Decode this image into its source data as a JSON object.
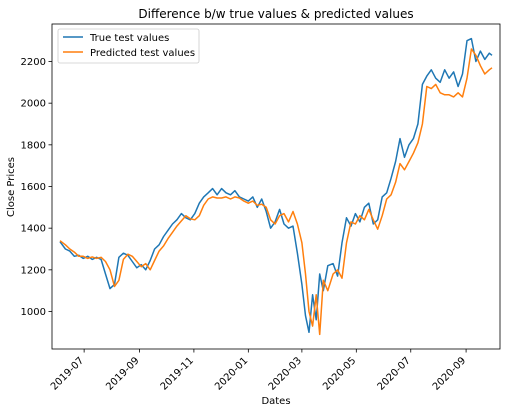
{
  "chart_data": {
    "type": "line",
    "title": "Difference b/w true values & predicted values",
    "xlabel": "Dates",
    "ylabel": "Close Prices",
    "x_range": [
      "2019-05-26",
      "2020-10-09"
    ],
    "ylim": [
      820,
      2380
    ],
    "x_ticks": [
      "2019-07",
      "2019-09",
      "2019-11",
      "2020-01",
      "2020-03",
      "2020-05",
      "2020-07",
      "2020-09"
    ],
    "y_ticks": [
      1000,
      1200,
      1400,
      1600,
      1800,
      2000,
      2200
    ],
    "grid": false,
    "legend_position": "upper-left",
    "series": [
      {
        "name": "True test values",
        "color": "#1f77b4",
        "points": [
          [
            "2019-06-04",
            1335
          ],
          [
            "2019-06-10",
            1300
          ],
          [
            "2019-06-15",
            1290
          ],
          [
            "2019-06-20",
            1265
          ],
          [
            "2019-06-25",
            1270
          ],
          [
            "2019-06-30",
            1255
          ],
          [
            "2019-07-05",
            1265
          ],
          [
            "2019-07-10",
            1250
          ],
          [
            "2019-07-15",
            1260
          ],
          [
            "2019-07-20",
            1250
          ],
          [
            "2019-07-25",
            1180
          ],
          [
            "2019-07-30",
            1110
          ],
          [
            "2019-08-04",
            1130
          ],
          [
            "2019-08-09",
            1260
          ],
          [
            "2019-08-14",
            1280
          ],
          [
            "2019-08-19",
            1270
          ],
          [
            "2019-08-24",
            1240
          ],
          [
            "2019-08-29",
            1210
          ],
          [
            "2019-09-03",
            1225
          ],
          [
            "2019-09-08",
            1200
          ],
          [
            "2019-09-13",
            1245
          ],
          [
            "2019-09-18",
            1300
          ],
          [
            "2019-09-23",
            1320
          ],
          [
            "2019-09-28",
            1360
          ],
          [
            "2019-10-03",
            1390
          ],
          [
            "2019-10-08",
            1420
          ],
          [
            "2019-10-13",
            1440
          ],
          [
            "2019-10-18",
            1470
          ],
          [
            "2019-10-23",
            1450
          ],
          [
            "2019-10-28",
            1440
          ],
          [
            "2019-11-02",
            1470
          ],
          [
            "2019-11-07",
            1520
          ],
          [
            "2019-11-12",
            1550
          ],
          [
            "2019-11-17",
            1570
          ],
          [
            "2019-11-22",
            1590
          ],
          [
            "2019-11-27",
            1560
          ],
          [
            "2019-12-02",
            1590
          ],
          [
            "2019-12-07",
            1570
          ],
          [
            "2019-12-12",
            1560
          ],
          [
            "2019-12-17",
            1580
          ],
          [
            "2019-12-22",
            1550
          ],
          [
            "2019-12-27",
            1540
          ],
          [
            "2020-01-01",
            1530
          ],
          [
            "2020-01-06",
            1550
          ],
          [
            "2020-01-11",
            1500
          ],
          [
            "2020-01-16",
            1540
          ],
          [
            "2020-01-21",
            1480
          ],
          [
            "2020-01-26",
            1400
          ],
          [
            "2020-01-31",
            1430
          ],
          [
            "2020-02-05",
            1490
          ],
          [
            "2020-02-10",
            1420
          ],
          [
            "2020-02-15",
            1400
          ],
          [
            "2020-02-20",
            1410
          ],
          [
            "2020-02-25",
            1280
          ],
          [
            "2020-03-01",
            1130
          ],
          [
            "2020-03-05",
            980
          ],
          [
            "2020-03-09",
            900
          ],
          [
            "2020-03-13",
            1080
          ],
          [
            "2020-03-17",
            960
          ],
          [
            "2020-03-21",
            1180
          ],
          [
            "2020-03-25",
            1100
          ],
          [
            "2020-03-30",
            1220
          ],
          [
            "2020-04-05",
            1230
          ],
          [
            "2020-04-10",
            1170
          ],
          [
            "2020-04-15",
            1330
          ],
          [
            "2020-04-20",
            1450
          ],
          [
            "2020-04-25",
            1410
          ],
          [
            "2020-04-30",
            1470
          ],
          [
            "2020-05-05",
            1430
          ],
          [
            "2020-05-10",
            1500
          ],
          [
            "2020-05-15",
            1520
          ],
          [
            "2020-05-20",
            1420
          ],
          [
            "2020-05-25",
            1440
          ],
          [
            "2020-05-30",
            1550
          ],
          [
            "2020-06-04",
            1570
          ],
          [
            "2020-06-09",
            1640
          ],
          [
            "2020-06-14",
            1720
          ],
          [
            "2020-06-19",
            1830
          ],
          [
            "2020-06-24",
            1740
          ],
          [
            "2020-06-29",
            1800
          ],
          [
            "2020-07-04",
            1830
          ],
          [
            "2020-07-09",
            1900
          ],
          [
            "2020-07-14",
            2090
          ],
          [
            "2020-07-19",
            2130
          ],
          [
            "2020-07-24",
            2160
          ],
          [
            "2020-07-29",
            2120
          ],
          [
            "2020-08-03",
            2100
          ],
          [
            "2020-08-08",
            2160
          ],
          [
            "2020-08-13",
            2120
          ],
          [
            "2020-08-18",
            2150
          ],
          [
            "2020-08-23",
            2080
          ],
          [
            "2020-08-28",
            2140
          ],
          [
            "2020-09-02",
            2300
          ],
          [
            "2020-09-07",
            2310
          ],
          [
            "2020-09-12",
            2200
          ],
          [
            "2020-09-17",
            2250
          ],
          [
            "2020-09-22",
            2210
          ],
          [
            "2020-09-27",
            2240
          ],
          [
            "2020-09-30",
            2230
          ]
        ]
      },
      {
        "name": "Predicted test values",
        "color": "#ff7f0e",
        "points": [
          [
            "2019-06-04",
            1340
          ],
          [
            "2019-06-10",
            1320
          ],
          [
            "2019-06-15",
            1300
          ],
          [
            "2019-06-20",
            1285
          ],
          [
            "2019-06-25",
            1265
          ],
          [
            "2019-06-30",
            1265
          ],
          [
            "2019-07-05",
            1255
          ],
          [
            "2019-07-10",
            1262
          ],
          [
            "2019-07-15",
            1255
          ],
          [
            "2019-07-20",
            1260
          ],
          [
            "2019-07-25",
            1240
          ],
          [
            "2019-07-30",
            1200
          ],
          [
            "2019-08-04",
            1120
          ],
          [
            "2019-08-09",
            1150
          ],
          [
            "2019-08-14",
            1250
          ],
          [
            "2019-08-19",
            1275
          ],
          [
            "2019-08-24",
            1265
          ],
          [
            "2019-08-29",
            1240
          ],
          [
            "2019-09-03",
            1215
          ],
          [
            "2019-09-08",
            1230
          ],
          [
            "2019-09-13",
            1200
          ],
          [
            "2019-09-18",
            1245
          ],
          [
            "2019-09-23",
            1290
          ],
          [
            "2019-09-28",
            1315
          ],
          [
            "2019-10-03",
            1350
          ],
          [
            "2019-10-08",
            1380
          ],
          [
            "2019-10-13",
            1410
          ],
          [
            "2019-10-18",
            1435
          ],
          [
            "2019-10-23",
            1460
          ],
          [
            "2019-10-28",
            1445
          ],
          [
            "2019-11-02",
            1440
          ],
          [
            "2019-11-07",
            1460
          ],
          [
            "2019-11-12",
            1510
          ],
          [
            "2019-11-17",
            1540
          ],
          [
            "2019-11-22",
            1550
          ],
          [
            "2019-11-27",
            1545
          ],
          [
            "2019-12-02",
            1545
          ],
          [
            "2019-12-07",
            1550
          ],
          [
            "2019-12-12",
            1540
          ],
          [
            "2019-12-17",
            1550
          ],
          [
            "2019-12-22",
            1545
          ],
          [
            "2019-12-27",
            1530
          ],
          [
            "2020-01-01",
            1520
          ],
          [
            "2020-01-06",
            1530
          ],
          [
            "2020-01-11",
            1510
          ],
          [
            "2020-01-16",
            1515
          ],
          [
            "2020-01-21",
            1500
          ],
          [
            "2020-01-26",
            1440
          ],
          [
            "2020-01-31",
            1420
          ],
          [
            "2020-02-05",
            1460
          ],
          [
            "2020-02-10",
            1470
          ],
          [
            "2020-02-15",
            1430
          ],
          [
            "2020-02-20",
            1480
          ],
          [
            "2020-02-25",
            1420
          ],
          [
            "2020-03-01",
            1330
          ],
          [
            "2020-03-05",
            1180
          ],
          [
            "2020-03-09",
            1000
          ],
          [
            "2020-03-13",
            930
          ],
          [
            "2020-03-17",
            1080
          ],
          [
            "2020-03-21",
            890
          ],
          [
            "2020-03-25",
            1150
          ],
          [
            "2020-03-30",
            1100
          ],
          [
            "2020-04-05",
            1180
          ],
          [
            "2020-04-10",
            1200
          ],
          [
            "2020-04-15",
            1160
          ],
          [
            "2020-04-20",
            1330
          ],
          [
            "2020-04-25",
            1430
          ],
          [
            "2020-04-30",
            1420
          ],
          [
            "2020-05-05",
            1460
          ],
          [
            "2020-05-10",
            1440
          ],
          [
            "2020-05-15",
            1490
          ],
          [
            "2020-05-20",
            1440
          ],
          [
            "2020-05-25",
            1395
          ],
          [
            "2020-05-30",
            1460
          ],
          [
            "2020-06-04",
            1540
          ],
          [
            "2020-06-09",
            1560
          ],
          [
            "2020-06-14",
            1620
          ],
          [
            "2020-06-19",
            1710
          ],
          [
            "2020-06-24",
            1680
          ],
          [
            "2020-06-29",
            1720
          ],
          [
            "2020-07-04",
            1760
          ],
          [
            "2020-07-09",
            1810
          ],
          [
            "2020-07-14",
            1900
          ],
          [
            "2020-07-19",
            2080
          ],
          [
            "2020-07-24",
            2070
          ],
          [
            "2020-07-29",
            2090
          ],
          [
            "2020-08-03",
            2050
          ],
          [
            "2020-08-08",
            2040
          ],
          [
            "2020-08-13",
            2040
          ],
          [
            "2020-08-18",
            2030
          ],
          [
            "2020-08-23",
            2050
          ],
          [
            "2020-08-28",
            2030
          ],
          [
            "2020-09-02",
            2120
          ],
          [
            "2020-09-07",
            2260
          ],
          [
            "2020-09-12",
            2230
          ],
          [
            "2020-09-17",
            2180
          ],
          [
            "2020-09-22",
            2140
          ],
          [
            "2020-09-27",
            2160
          ],
          [
            "2020-09-30",
            2170
          ]
        ]
      }
    ]
  }
}
